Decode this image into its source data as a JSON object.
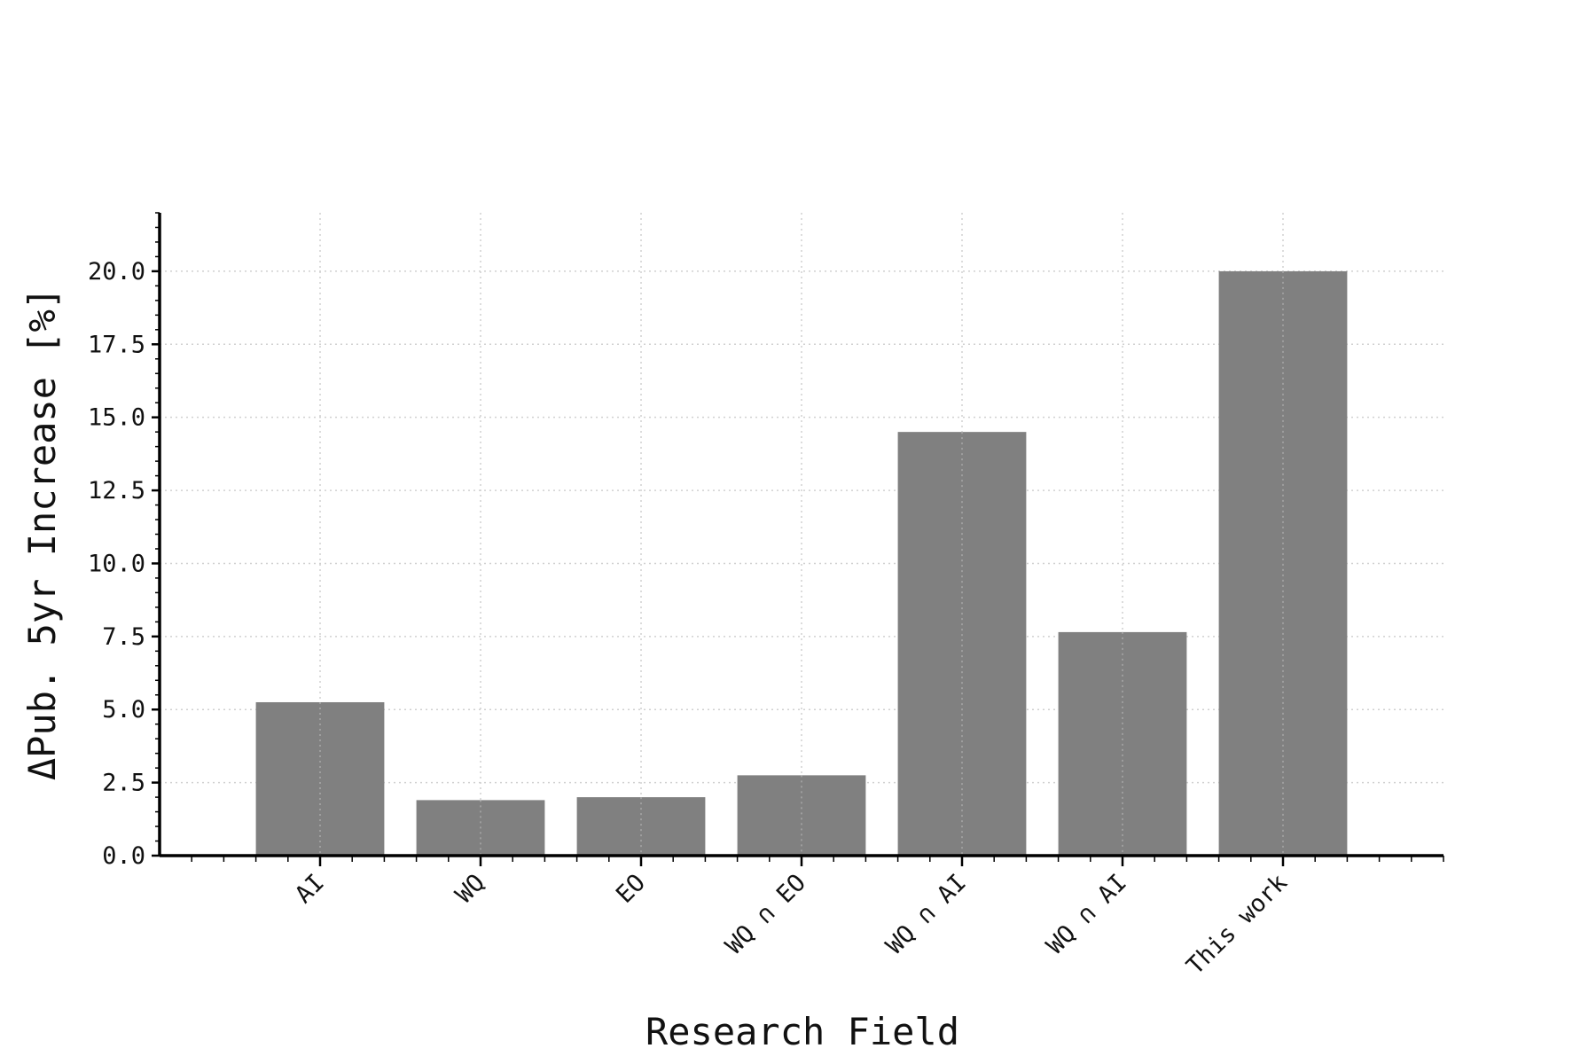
{
  "chart_data": {
    "type": "bar",
    "title": "",
    "xlabel": "Research Field",
    "ylabel": "ΔPub. 5yr Increase [%]",
    "categories": [
      "AI",
      "WQ",
      "EO",
      "WQ ∩ EO",
      "WQ ∩ AI",
      "WQ ∩ AI",
      "This work"
    ],
    "values": [
      5.25,
      1.9,
      2.0,
      2.75,
      14.5,
      7.65,
      20.0
    ],
    "ylim": [
      0,
      22
    ],
    "yticks": [
      "0.0",
      "2.5",
      "5.0",
      "7.5",
      "10.0",
      "12.5",
      "15.0",
      "17.5",
      "20.0"
    ],
    "grid": true,
    "legend": "none",
    "colors": {
      "bar": "#808080",
      "axis": "#000000",
      "grid": "#d0d0d0"
    }
  }
}
